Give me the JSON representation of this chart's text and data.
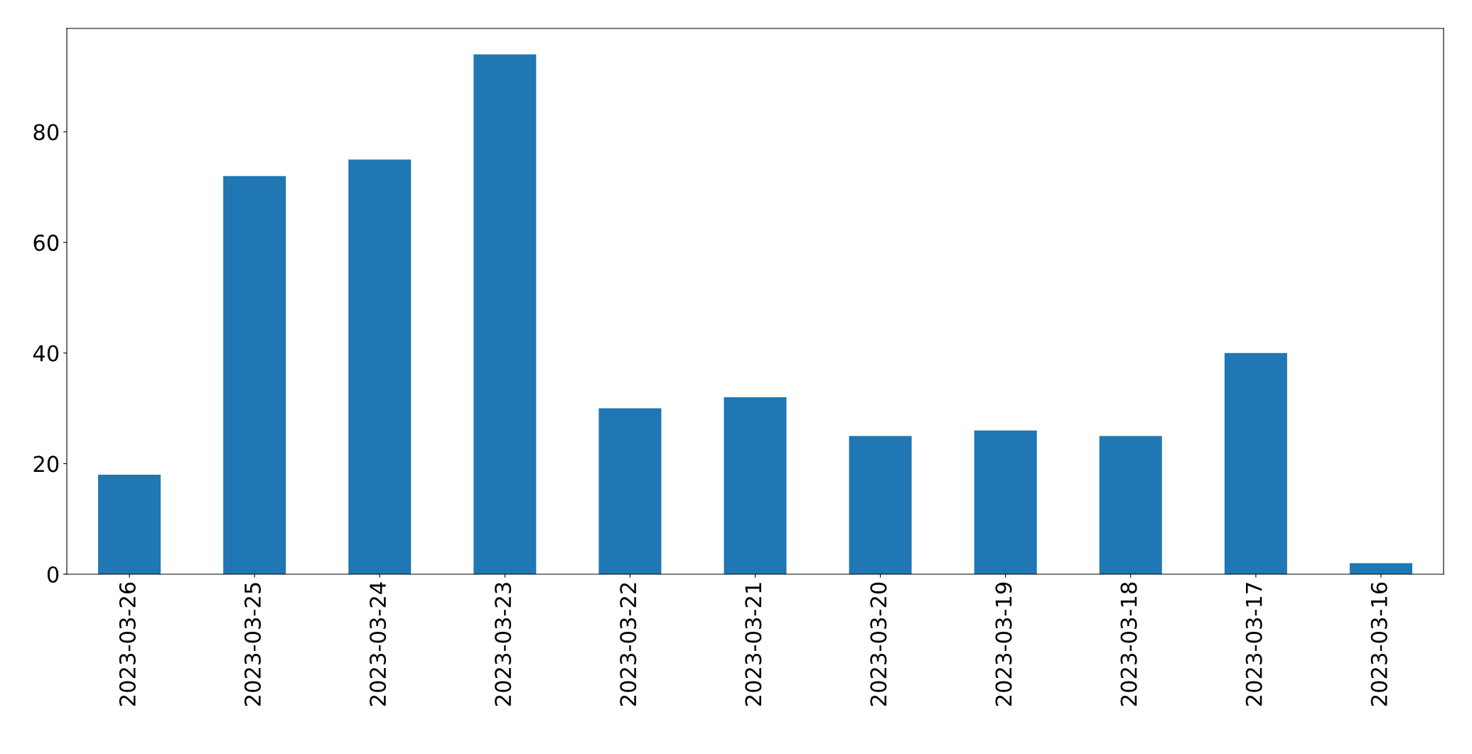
{
  "chart_data": {
    "type": "bar",
    "categories": [
      "2023-03-26",
      "2023-03-25",
      "2023-03-24",
      "2023-03-23",
      "2023-03-22",
      "2023-03-21",
      "2023-03-20",
      "2023-03-19",
      "2023-03-18",
      "2023-03-17",
      "2023-03-16"
    ],
    "values": [
      18,
      72,
      75,
      94,
      30,
      32,
      25,
      26,
      25,
      40,
      2
    ],
    "color": "#1f77b4",
    "ylim": [
      0,
      98.7
    ],
    "yticks": [
      0,
      20,
      40,
      60,
      80
    ],
    "grid": false
  }
}
